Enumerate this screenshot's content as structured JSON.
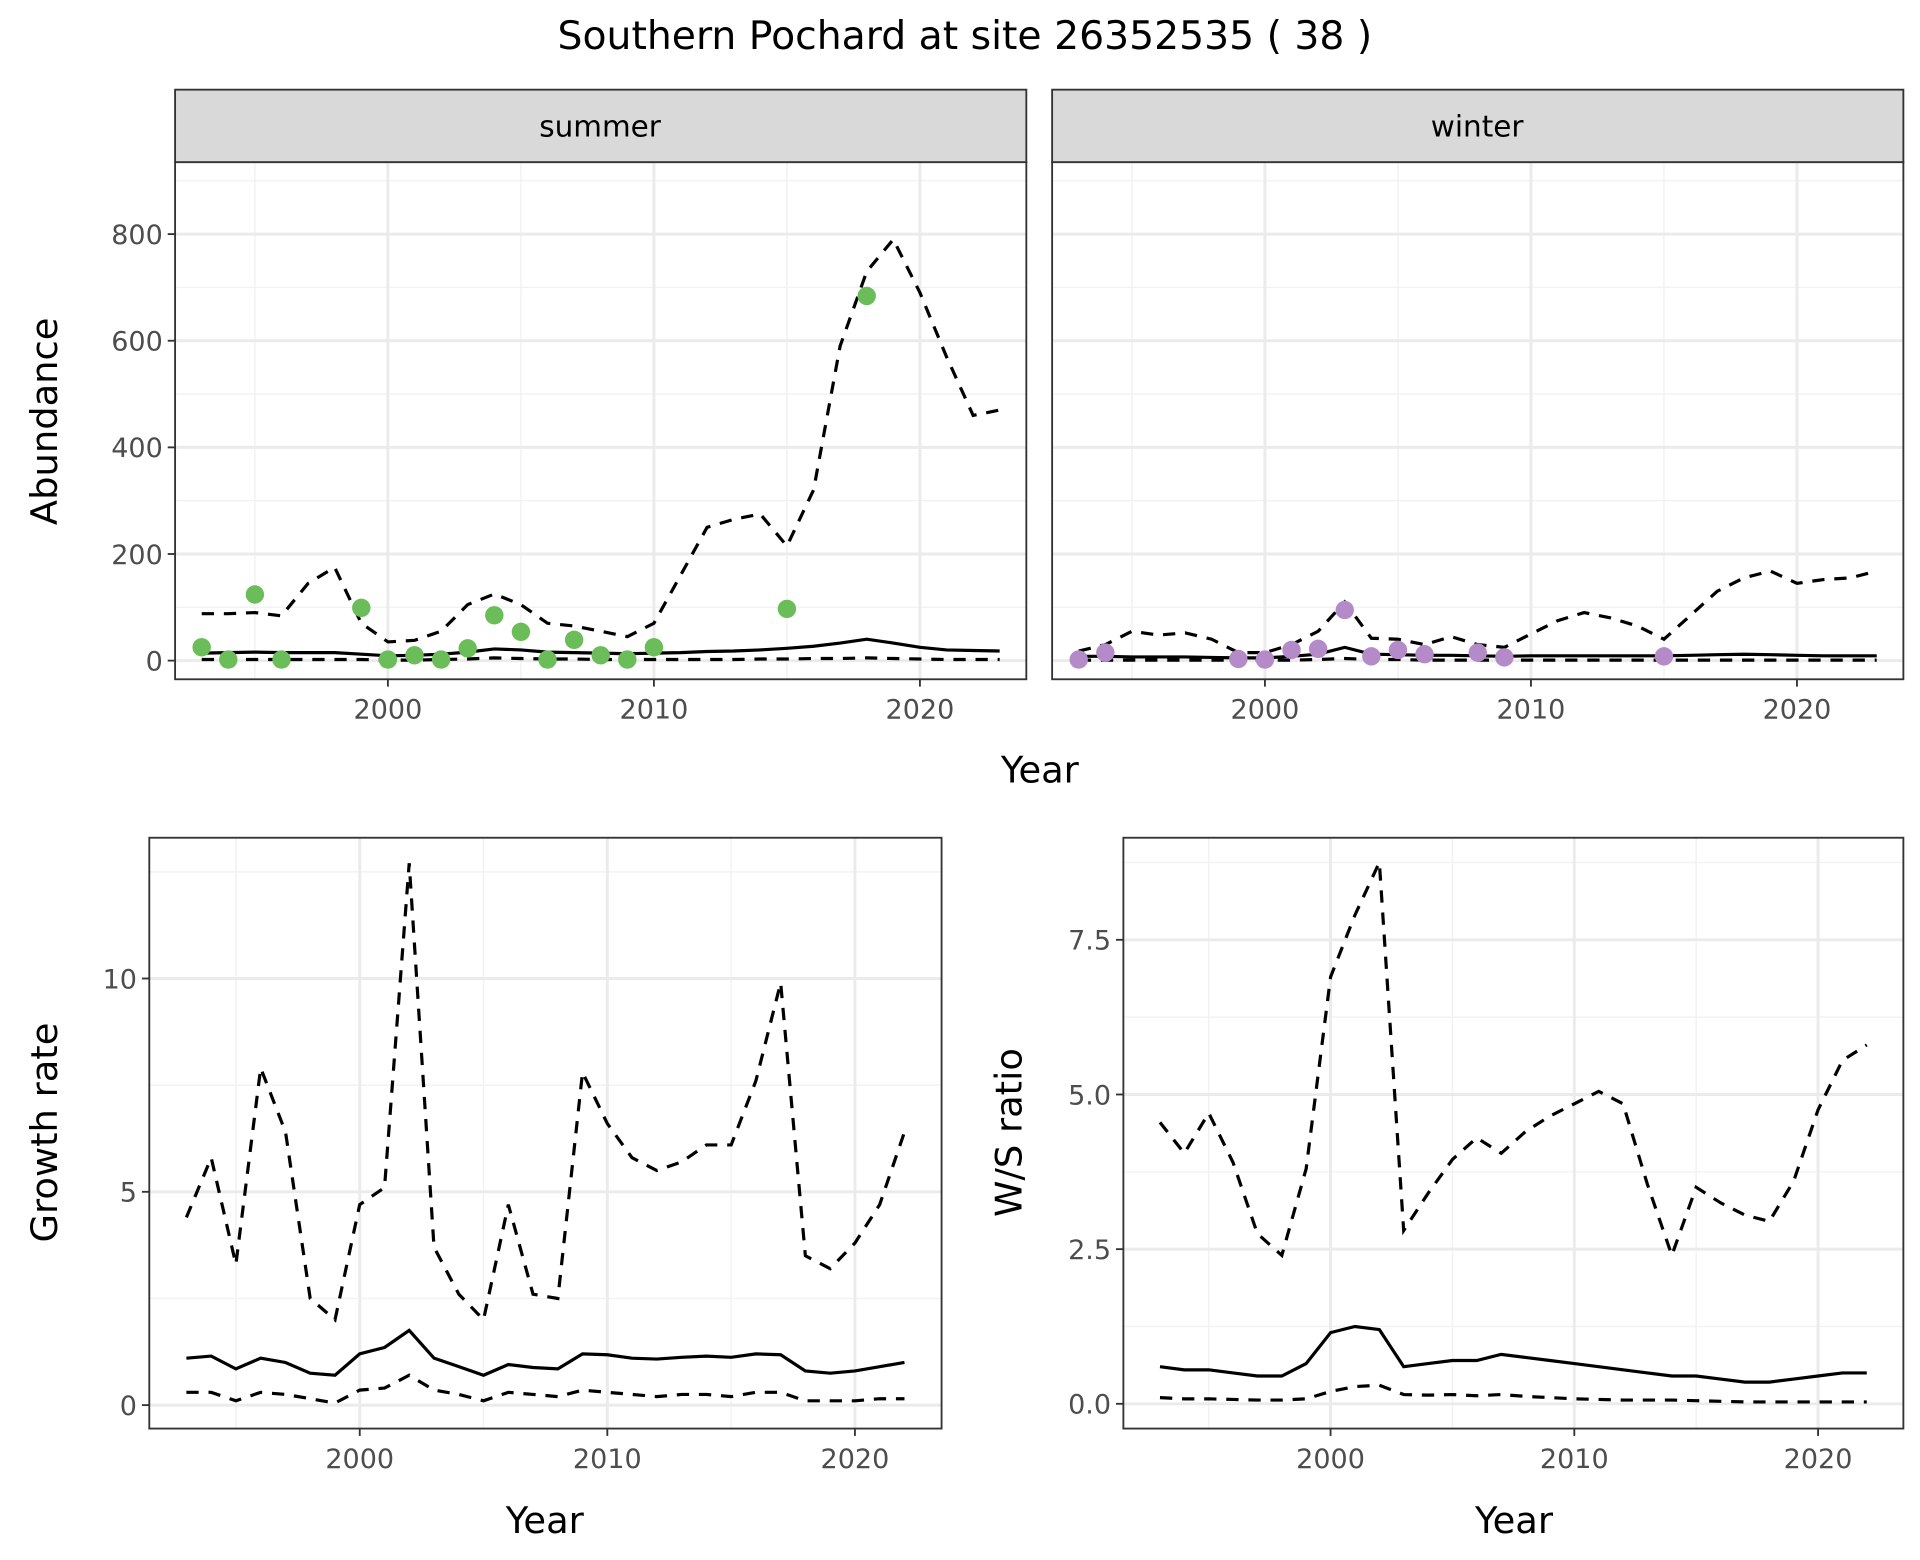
{
  "title": "Southern Pochard at site 26352535 ( 38 )",
  "colors": {
    "summer_points": "#6abd58",
    "winter_points": "#b48bc8",
    "strip": "#d9d9d9",
    "grid_major": "#ebebeb",
    "grid_minor": "#f2f2f2"
  },
  "chart_data": [
    {
      "type": "line",
      "facet": "summer",
      "ylabel": "Abundance",
      "xlabel": "Year",
      "xlim": [
        1992,
        2024
      ],
      "ylim": [
        -35,
        935
      ],
      "xticks": [
        2000,
        2010,
        2020
      ],
      "yticks": [
        0,
        200,
        400,
        600,
        800
      ],
      "x": [
        1993,
        1994,
        1995,
        1996,
        1997,
        1998,
        1999,
        2000,
        2001,
        2002,
        2003,
        2004,
        2005,
        2006,
        2007,
        2008,
        2009,
        2010,
        2011,
        2012,
        2013,
        2014,
        2015,
        2016,
        2017,
        2018,
        2019,
        2020,
        2021,
        2022,
        2023
      ],
      "series": [
        {
          "name": "upper",
          "style": "dashed",
          "values": [
            88,
            88,
            90,
            84,
            145,
            175,
            70,
            35,
            38,
            55,
            105,
            125,
            105,
            70,
            65,
            55,
            45,
            70,
            160,
            250,
            265,
            275,
            215,
            320,
            590,
            730,
            790,
            690,
            570,
            460,
            470
          ]
        },
        {
          "name": "mean",
          "style": "solid",
          "values": [
            14,
            15,
            16,
            15,
            15,
            15,
            12,
            9,
            10,
            12,
            16,
            22,
            20,
            16,
            15,
            14,
            13,
            14,
            15,
            17,
            18,
            20,
            23,
            27,
            33,
            40,
            33,
            25,
            20,
            19,
            18
          ]
        },
        {
          "name": "lower",
          "style": "dashed",
          "values": [
            2,
            2,
            2,
            2,
            2,
            2,
            2,
            1,
            1,
            2,
            3,
            5,
            4,
            3,
            3,
            2,
            2,
            2,
            2,
            2,
            2,
            3,
            3,
            4,
            4,
            5,
            4,
            3,
            2,
            2,
            2
          ]
        }
      ],
      "points": {
        "x": [
          1993,
          1994,
          1995,
          1996,
          1999,
          2000,
          2001,
          2002,
          2003,
          2004,
          2005,
          2006,
          2007,
          2008,
          2009,
          2010,
          2015,
          2018
        ],
        "values": [
          25,
          2,
          124,
          2,
          99,
          2,
          10,
          2,
          23,
          85,
          54,
          2,
          39,
          10,
          2,
          25,
          97,
          684
        ]
      }
    },
    {
      "type": "line",
      "facet": "winter",
      "ylabel": "",
      "xlabel": "Year",
      "xlim": [
        1992,
        2024
      ],
      "ylim": [
        -35,
        935
      ],
      "xticks": [
        2000,
        2010,
        2020
      ],
      "yticks": [
        0,
        200,
        400,
        600,
        800
      ],
      "x": [
        1993,
        1994,
        1995,
        1996,
        1997,
        1998,
        1999,
        2000,
        2001,
        2002,
        2003,
        2004,
        2005,
        2006,
        2007,
        2008,
        2009,
        2010,
        2011,
        2012,
        2013,
        2014,
        2015,
        2016,
        2017,
        2018,
        2019,
        2020,
        2021,
        2022,
        2023
      ],
      "series": [
        {
          "name": "upper",
          "style": "dashed",
          "values": [
            18,
            30,
            55,
            48,
            52,
            40,
            15,
            15,
            30,
            55,
            110,
            42,
            40,
            30,
            45,
            30,
            25,
            50,
            75,
            90,
            80,
            65,
            40,
            85,
            130,
            155,
            168,
            145,
            152,
            155,
            168
          ]
        },
        {
          "name": "mean",
          "style": "solid",
          "values": [
            8,
            8,
            7,
            7,
            7,
            6,
            5,
            5,
            8,
            12,
            25,
            12,
            11,
            10,
            10,
            9,
            8,
            9,
            9,
            9,
            9,
            9,
            9,
            10,
            11,
            12,
            11,
            10,
            9,
            9,
            9
          ]
        },
        {
          "name": "lower",
          "style": "dashed",
          "values": [
            1,
            1,
            1,
            1,
            1,
            1,
            1,
            1,
            1,
            2,
            4,
            2,
            2,
            1,
            1,
            1,
            1,
            1,
            1,
            1,
            1,
            1,
            1,
            1,
            1,
            1,
            1,
            1,
            1,
            1,
            1
          ]
        }
      ],
      "points": {
        "x": [
          1993,
          1994,
          1999,
          2000,
          2001,
          2002,
          2003,
          2004,
          2005,
          2006,
          2008,
          2009,
          2015
        ],
        "values": [
          2,
          15,
          3,
          2,
          20,
          22,
          95,
          8,
          20,
          12,
          15,
          6,
          8
        ]
      }
    },
    {
      "type": "line",
      "ylabel": "Growth rate",
      "xlabel": "Year",
      "xlim": [
        1991.5,
        2023.5
      ],
      "ylim": [
        -0.55,
        13.3
      ],
      "xticks": [
        2000,
        2010,
        2020
      ],
      "yticks": [
        0,
        5,
        10
      ],
      "x": [
        1993,
        1994,
        1995,
        1996,
        1997,
        1998,
        1999,
        2000,
        2001,
        2002,
        2003,
        2004,
        2005,
        2006,
        2007,
        2008,
        2009,
        2010,
        2011,
        2012,
        2013,
        2014,
        2015,
        2016,
        2017,
        2018,
        2019,
        2020,
        2021,
        2022
      ],
      "series": [
        {
          "name": "upper",
          "style": "dashed",
          "values": [
            4.4,
            5.8,
            3.3,
            7.9,
            6.4,
            2.5,
            2.0,
            4.7,
            5.1,
            12.7,
            3.7,
            2.6,
            2.0,
            4.7,
            2.6,
            2.5,
            7.8,
            6.6,
            5.8,
            5.5,
            5.7,
            6.1,
            6.1,
            7.6,
            9.9,
            3.5,
            3.2,
            3.8,
            4.7,
            6.4
          ]
        },
        {
          "name": "mean",
          "style": "solid",
          "values": [
            1.1,
            1.15,
            0.85,
            1.1,
            1.0,
            0.75,
            0.7,
            1.2,
            1.35,
            1.75,
            1.1,
            0.9,
            0.7,
            0.95,
            0.88,
            0.85,
            1.2,
            1.18,
            1.1,
            1.08,
            1.12,
            1.15,
            1.12,
            1.2,
            1.18,
            0.8,
            0.75,
            0.8,
            0.9,
            1.0
          ]
        },
        {
          "name": "lower",
          "style": "dashed",
          "values": [
            0.3,
            0.3,
            0.1,
            0.3,
            0.25,
            0.15,
            0.05,
            0.35,
            0.4,
            0.7,
            0.35,
            0.25,
            0.1,
            0.3,
            0.25,
            0.2,
            0.35,
            0.3,
            0.25,
            0.2,
            0.25,
            0.25,
            0.2,
            0.3,
            0.3,
            0.1,
            0.1,
            0.1,
            0.15,
            0.15
          ]
        }
      ]
    },
    {
      "type": "line",
      "ylabel": "W/S ratio",
      "xlabel": "Year",
      "xlim": [
        1991.5,
        2023.5
      ],
      "ylim": [
        -0.4,
        9.15
      ],
      "xticks": [
        2000,
        2010,
        2020
      ],
      "yticks": [
        0.0,
        2.5,
        5.0,
        7.5
      ],
      "ytick_labels": [
        "0.0",
        "2.5",
        "5.0",
        "7.5"
      ],
      "x": [
        1993,
        1994,
        1995,
        1996,
        1997,
        1998,
        1999,
        2000,
        2001,
        2002,
        2003,
        2004,
        2005,
        2006,
        2007,
        2008,
        2009,
        2010,
        2011,
        2012,
        2013,
        2014,
        2015,
        2016,
        2017,
        2018,
        2019,
        2020,
        2021,
        2022
      ],
      "series": [
        {
          "name": "upper",
          "style": "dashed",
          "values": [
            4.55,
            4.05,
            4.7,
            3.9,
            2.75,
            2.4,
            3.8,
            6.9,
            7.9,
            8.75,
            2.8,
            3.4,
            3.95,
            4.3,
            4.05,
            4.4,
            4.65,
            4.85,
            5.05,
            4.85,
            3.55,
            2.4,
            3.5,
            3.25,
            3.05,
            2.95,
            3.6,
            4.75,
            5.55,
            5.8
          ]
        },
        {
          "name": "mean",
          "style": "solid",
          "values": [
            0.6,
            0.55,
            0.55,
            0.5,
            0.45,
            0.45,
            0.65,
            1.15,
            1.25,
            1.2,
            0.6,
            0.65,
            0.7,
            0.7,
            0.8,
            0.75,
            0.7,
            0.65,
            0.6,
            0.55,
            0.5,
            0.45,
            0.45,
            0.4,
            0.35,
            0.35,
            0.4,
            0.45,
            0.5,
            0.5
          ]
        },
        {
          "name": "lower",
          "style": "dashed",
          "values": [
            0.1,
            0.08,
            0.08,
            0.07,
            0.06,
            0.06,
            0.08,
            0.2,
            0.28,
            0.3,
            0.15,
            0.14,
            0.15,
            0.13,
            0.15,
            0.12,
            0.1,
            0.08,
            0.07,
            0.06,
            0.06,
            0.06,
            0.05,
            0.04,
            0.03,
            0.03,
            0.03,
            0.03,
            0.03,
            0.03
          ]
        }
      ]
    }
  ]
}
